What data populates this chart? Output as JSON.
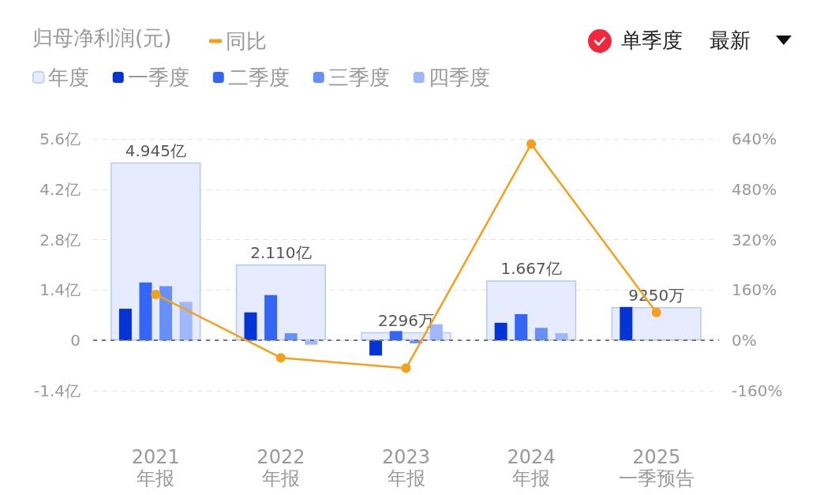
{
  "chart_data": {
    "type": "bar",
    "title": "归母净利润(元)",
    "categories": [
      "2021\n年报",
      "2022\n年报",
      "2023\n年报",
      "2024\n年报",
      "2025\n一季预告"
    ],
    "series": [
      {
        "name": "年度",
        "color": "#e6ecfd",
        "values": [
          4.945,
          2.11,
          0.2296,
          1.667,
          0.925
        ],
        "value_labels": [
          "4.945亿",
          "2.110亿",
          null,
          "1.667亿",
          null
        ]
      },
      {
        "name": "一季度",
        "color": "#0433d6",
        "values": [
          0.88,
          0.78,
          -0.42,
          0.49,
          0.93
        ]
      },
      {
        "name": "二季度",
        "color": "#3366f5",
        "values": [
          1.61,
          1.26,
          0.26,
          0.73,
          null
        ]
      },
      {
        "name": "三季度",
        "color": "#6690f7",
        "values": [
          1.51,
          0.2,
          -0.08,
          0.35,
          null
        ]
      },
      {
        "name": "四季度",
        "color": "#9fb8fa",
        "values": [
          1.07,
          -0.12,
          0.45,
          0.2,
          null
        ]
      },
      {
        "name": "同比",
        "type": "line",
        "axis": "y2",
        "color": "#f5a01a",
        "values": [
          146,
          -55,
          -88,
          624,
          89
        ]
      }
    ],
    "ylim": [
      -1.4,
      5.6
    ],
    "yticks": [
      {
        "value": -1.4,
        "label": "-1.4亿"
      },
      0,
      {
        "value": 1.4,
        "label": "1.4亿"
      },
      {
        "value": 2.8,
        "label": "2.8亿"
      },
      {
        "value": 4.2,
        "label": "4.2亿"
      },
      {
        "value": 5.6,
        "label": "5.6亿"
      }
    ],
    "y2lim": [
      -160,
      640
    ],
    "y2ticks": [
      {
        "value": -160,
        "label": "-160%"
      },
      {
        "value": 0,
        "label": "0%"
      },
      {
        "value": 160,
        "label": "160%"
      },
      {
        "value": 320,
        "label": "320%"
      },
      {
        "value": 480,
        "label": "480%"
      },
      {
        "value": 640,
        "label": "640%"
      }
    ],
    "ref_lines": [
      {
        "axis": "y",
        "value": 0,
        "color": "#777777",
        "line_style": "dashed"
      }
    ],
    "grid": "y",
    "legend": "top left",
    "marker": "circle",
    "annotations": [
      "单季度",
      "最新",
      {
        "text": "2296万",
        "x": "2023\n年报",
        "y": 0.2296
      },
      {
        "text": "9250万",
        "x": "2025\n一季预告",
        "y": 0.925
      }
    ]
  }
}
